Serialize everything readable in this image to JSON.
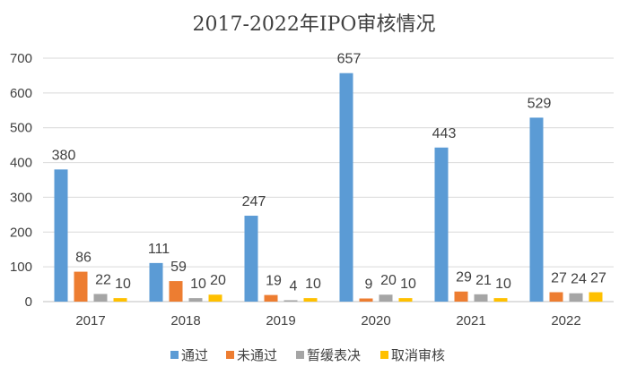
{
  "chart_data": {
    "type": "bar",
    "title": "2017-2022年IPO审核情况",
    "categories": [
      "2017",
      "2018",
      "2019",
      "2020",
      "2021",
      "2022"
    ],
    "series": [
      {
        "name": "通过",
        "color": "#5B9BD5",
        "values": [
          380,
          111,
          247,
          657,
          443,
          529
        ]
      },
      {
        "name": "未通过",
        "color": "#ED7D31",
        "values": [
          86,
          59,
          19,
          9,
          29,
          27
        ]
      },
      {
        "name": "暂缓表决",
        "color": "#A5A5A5",
        "values": [
          22,
          10,
          4,
          20,
          21,
          24
        ]
      },
      {
        "name": "取消审核",
        "color": "#FFC000",
        "values": [
          10,
          20,
          10,
          10,
          10,
          27
        ]
      }
    ],
    "ylim": [
      0,
      700
    ],
    "yticks": [
      0,
      100,
      200,
      300,
      400,
      500,
      600,
      700
    ],
    "grid": true,
    "legend": "bottom",
    "xlabel": "",
    "ylabel": ""
  }
}
